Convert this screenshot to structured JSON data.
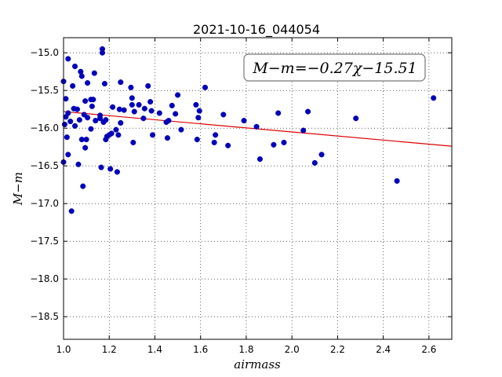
{
  "chart_data": {
    "type": "scatter",
    "title": "2021-10-16_044054",
    "xlabel": "airmass",
    "ylabel": "M−m",
    "xlim": [
      1.0,
      2.7
    ],
    "ylim": [
      -18.8,
      -14.8
    ],
    "y_inverted": true,
    "grid": true,
    "x_ticks": [
      "1.0",
      "1.2",
      "1.4",
      "1.6",
      "1.8",
      "2.0",
      "2.2",
      "2.4",
      "2.6"
    ],
    "y_ticks": [
      "−15.0",
      "−15.5",
      "−16.0",
      "−16.5",
      "−17.0",
      "−17.5",
      "−18.0",
      "−18.5"
    ],
    "annotation": "M−m=−0.27χ−15.51",
    "fit_line": {
      "slope": -0.27,
      "intercept": -15.51,
      "color": "#dd0000"
    },
    "marker_color": "#0000bb",
    "points": [
      [
        1.0,
        -15.38
      ],
      [
        1.0,
        -16.45
      ],
      [
        1.005,
        -15.95
      ],
      [
        1.01,
        -15.61
      ],
      [
        1.01,
        -15.85
      ],
      [
        1.015,
        -16.12
      ],
      [
        1.02,
        -15.08
      ],
      [
        1.02,
        -15.8
      ],
      [
        1.02,
        -16.35
      ],
      [
        1.03,
        -15.91
      ],
      [
        1.035,
        -17.1
      ],
      [
        1.04,
        -15.44
      ],
      [
        1.045,
        -15.74
      ],
      [
        1.05,
        -15.18
      ],
      [
        1.05,
        -15.97
      ],
      [
        1.06,
        -15.75
      ],
      [
        1.065,
        -16.48
      ],
      [
        1.07,
        -15.89
      ],
      [
        1.075,
        -15.25
      ],
      [
        1.08,
        -15.31
      ],
      [
        1.08,
        -16.15
      ],
      [
        1.085,
        -16.77
      ],
      [
        1.09,
        -15.82
      ],
      [
        1.095,
        -15.64
      ],
      [
        1.095,
        -16.26
      ],
      [
        1.1,
        -16.15
      ],
      [
        1.105,
        -15.86
      ],
      [
        1.105,
        -15.4
      ],
      [
        1.12,
        -15.62
      ],
      [
        1.12,
        -16.01
      ],
      [
        1.125,
        -15.71
      ],
      [
        1.13,
        -15.62
      ],
      [
        1.135,
        -15.27
      ],
      [
        1.14,
        -15.9
      ],
      [
        1.16,
        -15.83
      ],
      [
        1.16,
        -15.87
      ],
      [
        1.165,
        -16.52
      ],
      [
        1.17,
        -14.95
      ],
      [
        1.17,
        -15.0
      ],
      [
        1.175,
        -15.92
      ],
      [
        1.18,
        -15.41
      ],
      [
        1.185,
        -15.89
      ],
      [
        1.185,
        -16.15
      ],
      [
        1.19,
        -16.11
      ],
      [
        1.2,
        -16.09
      ],
      [
        1.205,
        -16.54
      ],
      [
        1.21,
        -16.07
      ],
      [
        1.215,
        -15.72
      ],
      [
        1.23,
        -16.02
      ],
      [
        1.235,
        -16.58
      ],
      [
        1.24,
        -16.09
      ],
      [
        1.245,
        -15.75
      ],
      [
        1.25,
        -15.93
      ],
      [
        1.25,
        -15.39
      ],
      [
        1.265,
        -15.76
      ],
      [
        1.295,
        -15.46
      ],
      [
        1.3,
        -15.6
      ],
      [
        1.3,
        -15.69
      ],
      [
        1.305,
        -16.19
      ],
      [
        1.31,
        -15.78
      ],
      [
        1.33,
        -15.69
      ],
      [
        1.35,
        -15.87
      ],
      [
        1.355,
        -15.74
      ],
      [
        1.37,
        -15.44
      ],
      [
        1.38,
        -15.65
      ],
      [
        1.385,
        -15.77
      ],
      [
        1.39,
        -16.09
      ],
      [
        1.42,
        -15.8
      ],
      [
        1.45,
        -15.92
      ],
      [
        1.455,
        -16.13
      ],
      [
        1.46,
        -15.9
      ],
      [
        1.475,
        -15.7
      ],
      [
        1.49,
        -15.81
      ],
      [
        1.5,
        -15.56
      ],
      [
        1.515,
        -16.02
      ],
      [
        1.58,
        -15.69
      ],
      [
        1.585,
        -16.15
      ],
      [
        1.59,
        -15.86
      ],
      [
        1.595,
        -15.77
      ],
      [
        1.62,
        -15.46
      ],
      [
        1.66,
        -16.19
      ],
      [
        1.665,
        -16.09
      ],
      [
        1.7,
        -15.82
      ],
      [
        1.72,
        -16.23
      ],
      [
        1.79,
        -15.9
      ],
      [
        1.845,
        -15.98
      ],
      [
        1.86,
        -16.41
      ],
      [
        1.92,
        -16.22
      ],
      [
        1.94,
        -15.8
      ],
      [
        1.965,
        -16.19
      ],
      [
        2.05,
        -16.03
      ],
      [
        2.07,
        -15.78
      ],
      [
        2.1,
        -16.46
      ],
      [
        2.13,
        -16.35
      ],
      [
        2.28,
        -15.87
      ],
      [
        2.46,
        -16.7
      ],
      [
        2.62,
        -15.6
      ]
    ]
  }
}
